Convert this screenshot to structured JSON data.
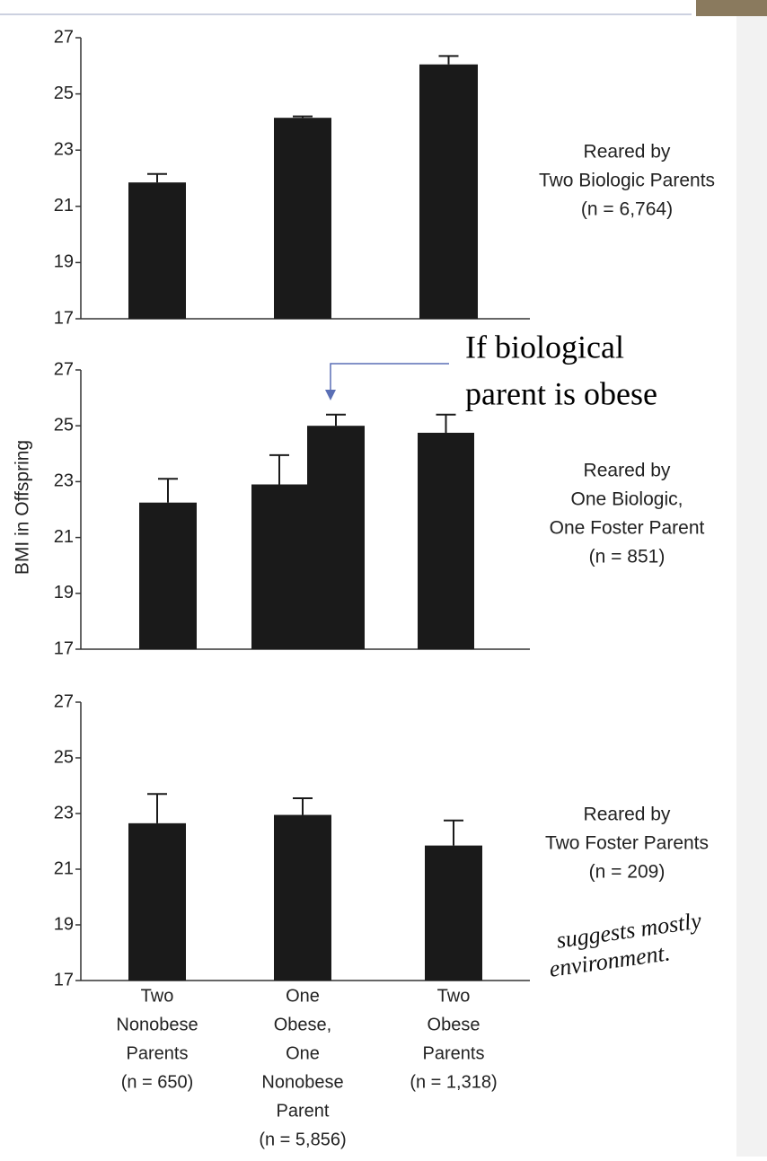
{
  "y_label": "BMI in Offspring",
  "callout": [
    "If biological",
    "parent is obese"
  ],
  "note": [
    "suggests mostly",
    "environment."
  ],
  "chart_data": [
    {
      "type": "bar",
      "ylim": [
        17,
        27
      ],
      "yticks": [
        17,
        19,
        21,
        23,
        25,
        27
      ],
      "color": "#1a1a1a",
      "values": [
        21.85,
        24.15,
        26.05
      ],
      "errors": [
        0.3,
        0.05,
        0.3
      ],
      "annotation": [
        "Reared by",
        "Two Biologic Parents",
        "(n = 6,764)"
      ]
    },
    {
      "type": "bar",
      "ylim": [
        17,
        27
      ],
      "yticks": [
        17,
        19,
        21,
        23,
        25,
        27
      ],
      "color": "#1a1a1a",
      "values": [
        22.25,
        22.9,
        25.0,
        24.75
      ],
      "errors": [
        0.85,
        1.05,
        0.4,
        0.65
      ],
      "annotation": [
        "Reared by",
        "One Biologic,",
        "One Foster Parent",
        "(n = 851)"
      ]
    },
    {
      "type": "bar",
      "ylim": [
        17,
        27
      ],
      "yticks": [
        17,
        19,
        21,
        23,
        25,
        27
      ],
      "color": "#1a1a1a",
      "values": [
        22.65,
        22.95,
        21.85
      ],
      "errors": [
        1.05,
        0.6,
        0.9
      ],
      "annotation": [
        "Reared by",
        "Two Foster Parents",
        "(n = 209)"
      ],
      "categories": [
        [
          "Two",
          "Nonobese",
          "Parents",
          "(n = 650)"
        ],
        [
          "One",
          "Obese,",
          "One",
          "Nonobese",
          "Parent",
          "(n = 5,856)"
        ],
        [
          "Two",
          "Obese",
          "Parents",
          "(n = 1,318)"
        ]
      ]
    }
  ]
}
